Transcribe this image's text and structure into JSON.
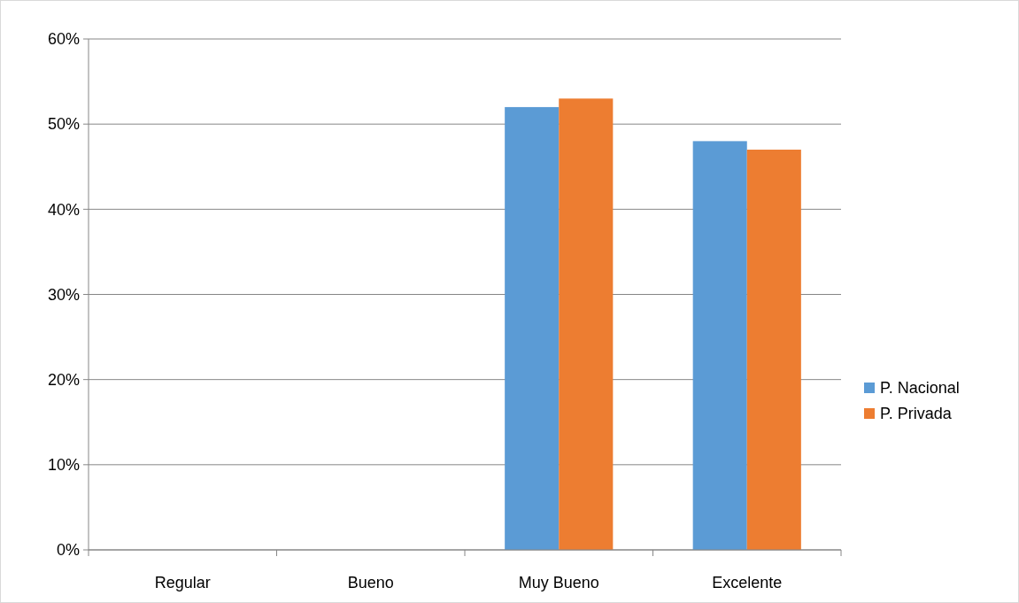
{
  "chart_data": {
    "type": "bar",
    "categories": [
      "Regular",
      "Bueno",
      "Muy Bueno",
      "Excelente"
    ],
    "series": [
      {
        "name": "P. Nacional",
        "color": "#5b9bd5",
        "values": [
          0,
          0,
          52,
          48
        ]
      },
      {
        "name": "P. Privada",
        "color": "#ed7d31",
        "values": [
          0,
          0,
          53,
          47
        ]
      }
    ],
    "ylim": [
      0,
      60
    ],
    "yticks": [
      {
        "value": 0,
        "label": "0%"
      },
      {
        "value": 10,
        "label": "10%"
      },
      {
        "value": 20,
        "label": "20%"
      },
      {
        "value": 30,
        "label": "30%"
      },
      {
        "value": 40,
        "label": "40%"
      },
      {
        "value": 50,
        "label": "50%"
      },
      {
        "value": 60,
        "label": "60%"
      }
    ],
    "grid": "y",
    "legend": "right"
  }
}
